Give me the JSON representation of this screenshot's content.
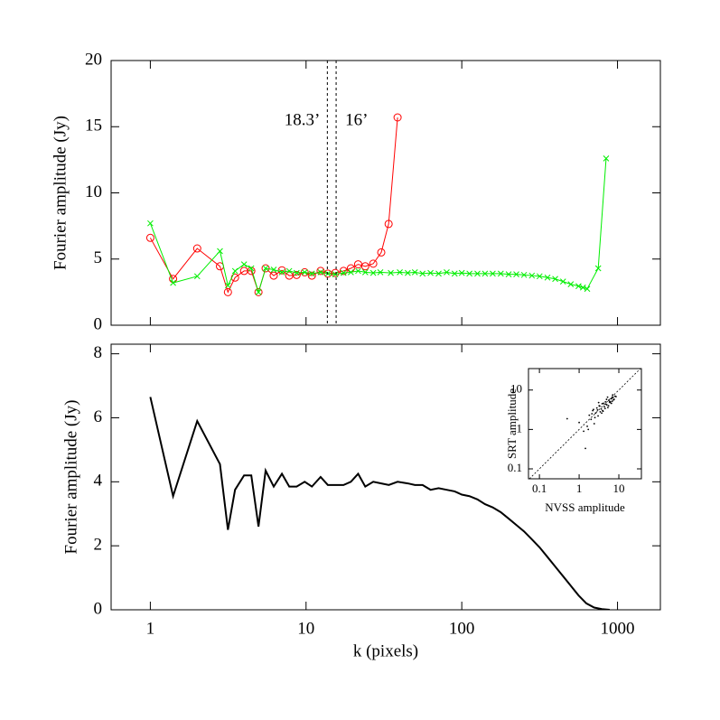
{
  "chart_data": [
    {
      "type": "line",
      "ylabel": "Fourier amplitude (Jy)",
      "xscale": "log",
      "xlim": [
        0.56,
        1885
      ],
      "ylim": [
        0,
        20
      ],
      "yticks": [
        0,
        5,
        10,
        15,
        20
      ],
      "vlines": [
        {
          "x": 13.7,
          "label": "18.3’"
        },
        {
          "x": 15.6,
          "label": "16’"
        }
      ],
      "series": [
        {
          "color": "#ff0000",
          "marker": "o",
          "x": [
            1,
            1.4,
            2.0,
            2.8,
            3.15,
            3.5,
            4.0,
            4.45,
            4.95,
            5.5,
            6.2,
            7.0,
            7.8,
            8.7,
            9.8,
            10.9,
            12.4,
            13.8,
            15.4,
            17.4,
            19.4,
            21.6,
            24,
            27,
            30.4,
            33.9,
            38.7
          ],
          "values": [
            6.6,
            3.5,
            5.8,
            4.45,
            2.5,
            3.6,
            4.1,
            4.1,
            2.5,
            4.3,
            3.75,
            4.15,
            3.75,
            3.8,
            4.0,
            3.75,
            4.1,
            3.9,
            3.95,
            4.1,
            4.3,
            4.6,
            4.45,
            4.65,
            5.5,
            7.65,
            15.7
          ]
        },
        {
          "color": "#00ee00",
          "marker": "x",
          "x": [
            1,
            1.4,
            2.0,
            2.8,
            3.15,
            3.5,
            4.0,
            4.45,
            4.95,
            5.5,
            6.2,
            7.0,
            7.8,
            8.7,
            9.8,
            10.9,
            12.4,
            13.8,
            15.4,
            17.4,
            19.4,
            21.6,
            24,
            27,
            30,
            35,
            40,
            45,
            50,
            56,
            63,
            71,
            80,
            90,
            100,
            112,
            126,
            141,
            158,
            178,
            200,
            224,
            251,
            282,
            316,
            355,
            398,
            447,
            501,
            562,
            600,
            639,
            752,
            845
          ],
          "values": [
            7.7,
            3.2,
            3.7,
            5.6,
            3.0,
            4.1,
            4.6,
            4.3,
            2.5,
            4.3,
            4.2,
            4.0,
            4.1,
            3.95,
            4.0,
            3.9,
            4.0,
            3.9,
            3.85,
            3.95,
            4.0,
            4.1,
            4.0,
            3.95,
            4.0,
            3.95,
            4.0,
            3.95,
            4.0,
            3.9,
            3.95,
            3.9,
            4.0,
            3.9,
            3.95,
            3.9,
            3.9,
            3.9,
            3.9,
            3.9,
            3.85,
            3.85,
            3.8,
            3.75,
            3.7,
            3.6,
            3.5,
            3.3,
            3.1,
            2.95,
            2.85,
            2.75,
            4.3,
            12.6
          ]
        }
      ]
    },
    {
      "type": "line",
      "xlabel": "k (pixels)",
      "ylabel": "Fourier amplitude (Jy)",
      "xscale": "log",
      "xlim": [
        0.56,
        1885
      ],
      "ylim": [
        0,
        8.3
      ],
      "xticks": [
        1,
        10,
        100,
        1000
      ],
      "yticks": [
        0,
        2,
        4,
        6,
        8
      ],
      "series": [
        {
          "color": "#000000",
          "marker": "none",
          "x": [
            1,
            1.4,
            2.0,
            2.8,
            3.15,
            3.5,
            4.0,
            4.45,
            4.95,
            5.5,
            6.2,
            7.0,
            7.8,
            8.7,
            9.8,
            10.9,
            12.4,
            13.8,
            15.4,
            17.4,
            19.4,
            21.6,
            24,
            27,
            30.4,
            34,
            38.7,
            45,
            50,
            56,
            63,
            71,
            80,
            90,
            100,
            112,
            126,
            141,
            158,
            178,
            200,
            224,
            251,
            282,
            316,
            355,
            398,
            447,
            501,
            562,
            631,
            708,
            794,
            891
          ],
          "values": [
            6.65,
            3.55,
            5.9,
            4.55,
            2.5,
            3.75,
            4.2,
            4.2,
            2.6,
            4.35,
            3.85,
            4.25,
            3.85,
            3.85,
            4.0,
            3.85,
            4.15,
            3.9,
            3.9,
            3.9,
            4.0,
            4.25,
            3.85,
            4.0,
            3.95,
            3.9,
            4.0,
            3.95,
            3.9,
            3.9,
            3.75,
            3.8,
            3.75,
            3.7,
            3.6,
            3.55,
            3.45,
            3.3,
            3.2,
            3.05,
            2.85,
            2.65,
            2.45,
            2.2,
            1.95,
            1.65,
            1.35,
            1.05,
            0.75,
            0.45,
            0.2,
            0.07,
            0.02,
            0.0
          ]
        }
      ]
    },
    {
      "type": "scatter",
      "xlabel": "NVSS amplitude",
      "ylabel": "SRT amplitude",
      "xscale": "log",
      "yscale": "log",
      "xlim": [
        0.053,
        37
      ],
      "ylim": [
        0.056,
        35
      ],
      "xticks": [
        0.1,
        1,
        10
      ],
      "yticks": [
        0.1,
        1,
        10
      ],
      "identity": true,
      "color": "#000000",
      "x": [
        0.5,
        1.44,
        1.0,
        1.3,
        1.6,
        1.8,
        2.0,
        2.2,
        2.4,
        2.6,
        2.8,
        3.0,
        3.2,
        3.4,
        3.6,
        3.8,
        4.0,
        4.3,
        4.6,
        5.0,
        5.3,
        5.6,
        6.0,
        6.4,
        6.8,
        7.2,
        7.6,
        8.0,
        2.1,
        2.5,
        2.9,
        3.3,
        3.7,
        4.1,
        4.5,
        4.9,
        5.5,
        6.1,
        6.7,
        7.3,
        1.7,
        2.3,
        3.1,
        3.9,
        4.7,
        5.2,
        5.8,
        6.5,
        7.0,
        8.5
      ],
      "values": [
        1.87,
        0.33,
        1.5,
        0.9,
        1.2,
        2.3,
        1.8,
        3.0,
        1.4,
        2.6,
        3.5,
        2.2,
        4.0,
        2.8,
        3.3,
        4.5,
        2.9,
        3.8,
        5.0,
        4.2,
        3.6,
        5.5,
        4.8,
        6.0,
        5.2,
        6.5,
        5.8,
        7.0,
        2.5,
        2.0,
        3.1,
        3.9,
        2.6,
        4.6,
        3.4,
        5.8,
        4.0,
        5.1,
        6.2,
        5.6,
        1.0,
        3.2,
        4.8,
        3.0,
        4.4,
        6.6,
        5.0,
        4.6,
        7.5,
        6.8
      ]
    }
  ]
}
